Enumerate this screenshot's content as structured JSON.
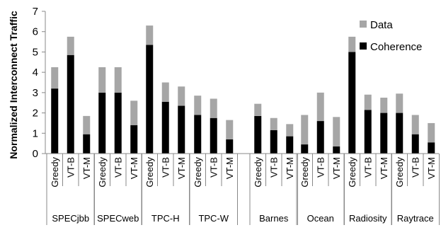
{
  "chart_data": {
    "type": "bar",
    "stacked": true,
    "ylabel": "Normalized Interconnect Traffic",
    "ylim": [
      0,
      7
    ],
    "yticks": [
      0,
      1,
      2,
      3,
      4,
      5,
      6,
      7
    ],
    "grid": false,
    "legend": {
      "placement": "top-right"
    },
    "colors": {
      "Coherence": "#000000",
      "Data": "#a6a6a6"
    },
    "groups": [
      "SPECjbb",
      "SPECweb",
      "TPC-H",
      "TPC-W",
      "Barnes",
      "Ocean",
      "Radiosity",
      "Raytrace"
    ],
    "bar_labels": [
      "Greedy",
      "VT-B",
      "VT-M"
    ],
    "series": [
      {
        "name": "Coherence",
        "values": [
          [
            3.2,
            4.85,
            0.95
          ],
          [
            3.0,
            3.0,
            1.4
          ],
          [
            5.35,
            2.55,
            2.35
          ],
          [
            1.9,
            1.75,
            0.7
          ],
          [
            1.85,
            1.15,
            0.85
          ],
          [
            0.45,
            1.6,
            0.35
          ],
          [
            5.0,
            2.15,
            2.0
          ],
          [
            2.0,
            0.95,
            0.55
          ]
        ]
      },
      {
        "name": "Data",
        "values": [
          [
            1.05,
            0.9,
            0.9
          ],
          [
            1.25,
            1.25,
            1.2
          ],
          [
            0.95,
            0.95,
            0.95
          ],
          [
            0.95,
            0.95,
            0.95
          ],
          [
            0.6,
            0.6,
            0.6
          ],
          [
            1.45,
            1.4,
            1.45
          ],
          [
            0.75,
            0.75,
            0.75
          ],
          [
            0.95,
            0.95,
            0.95
          ]
        ]
      }
    ]
  }
}
